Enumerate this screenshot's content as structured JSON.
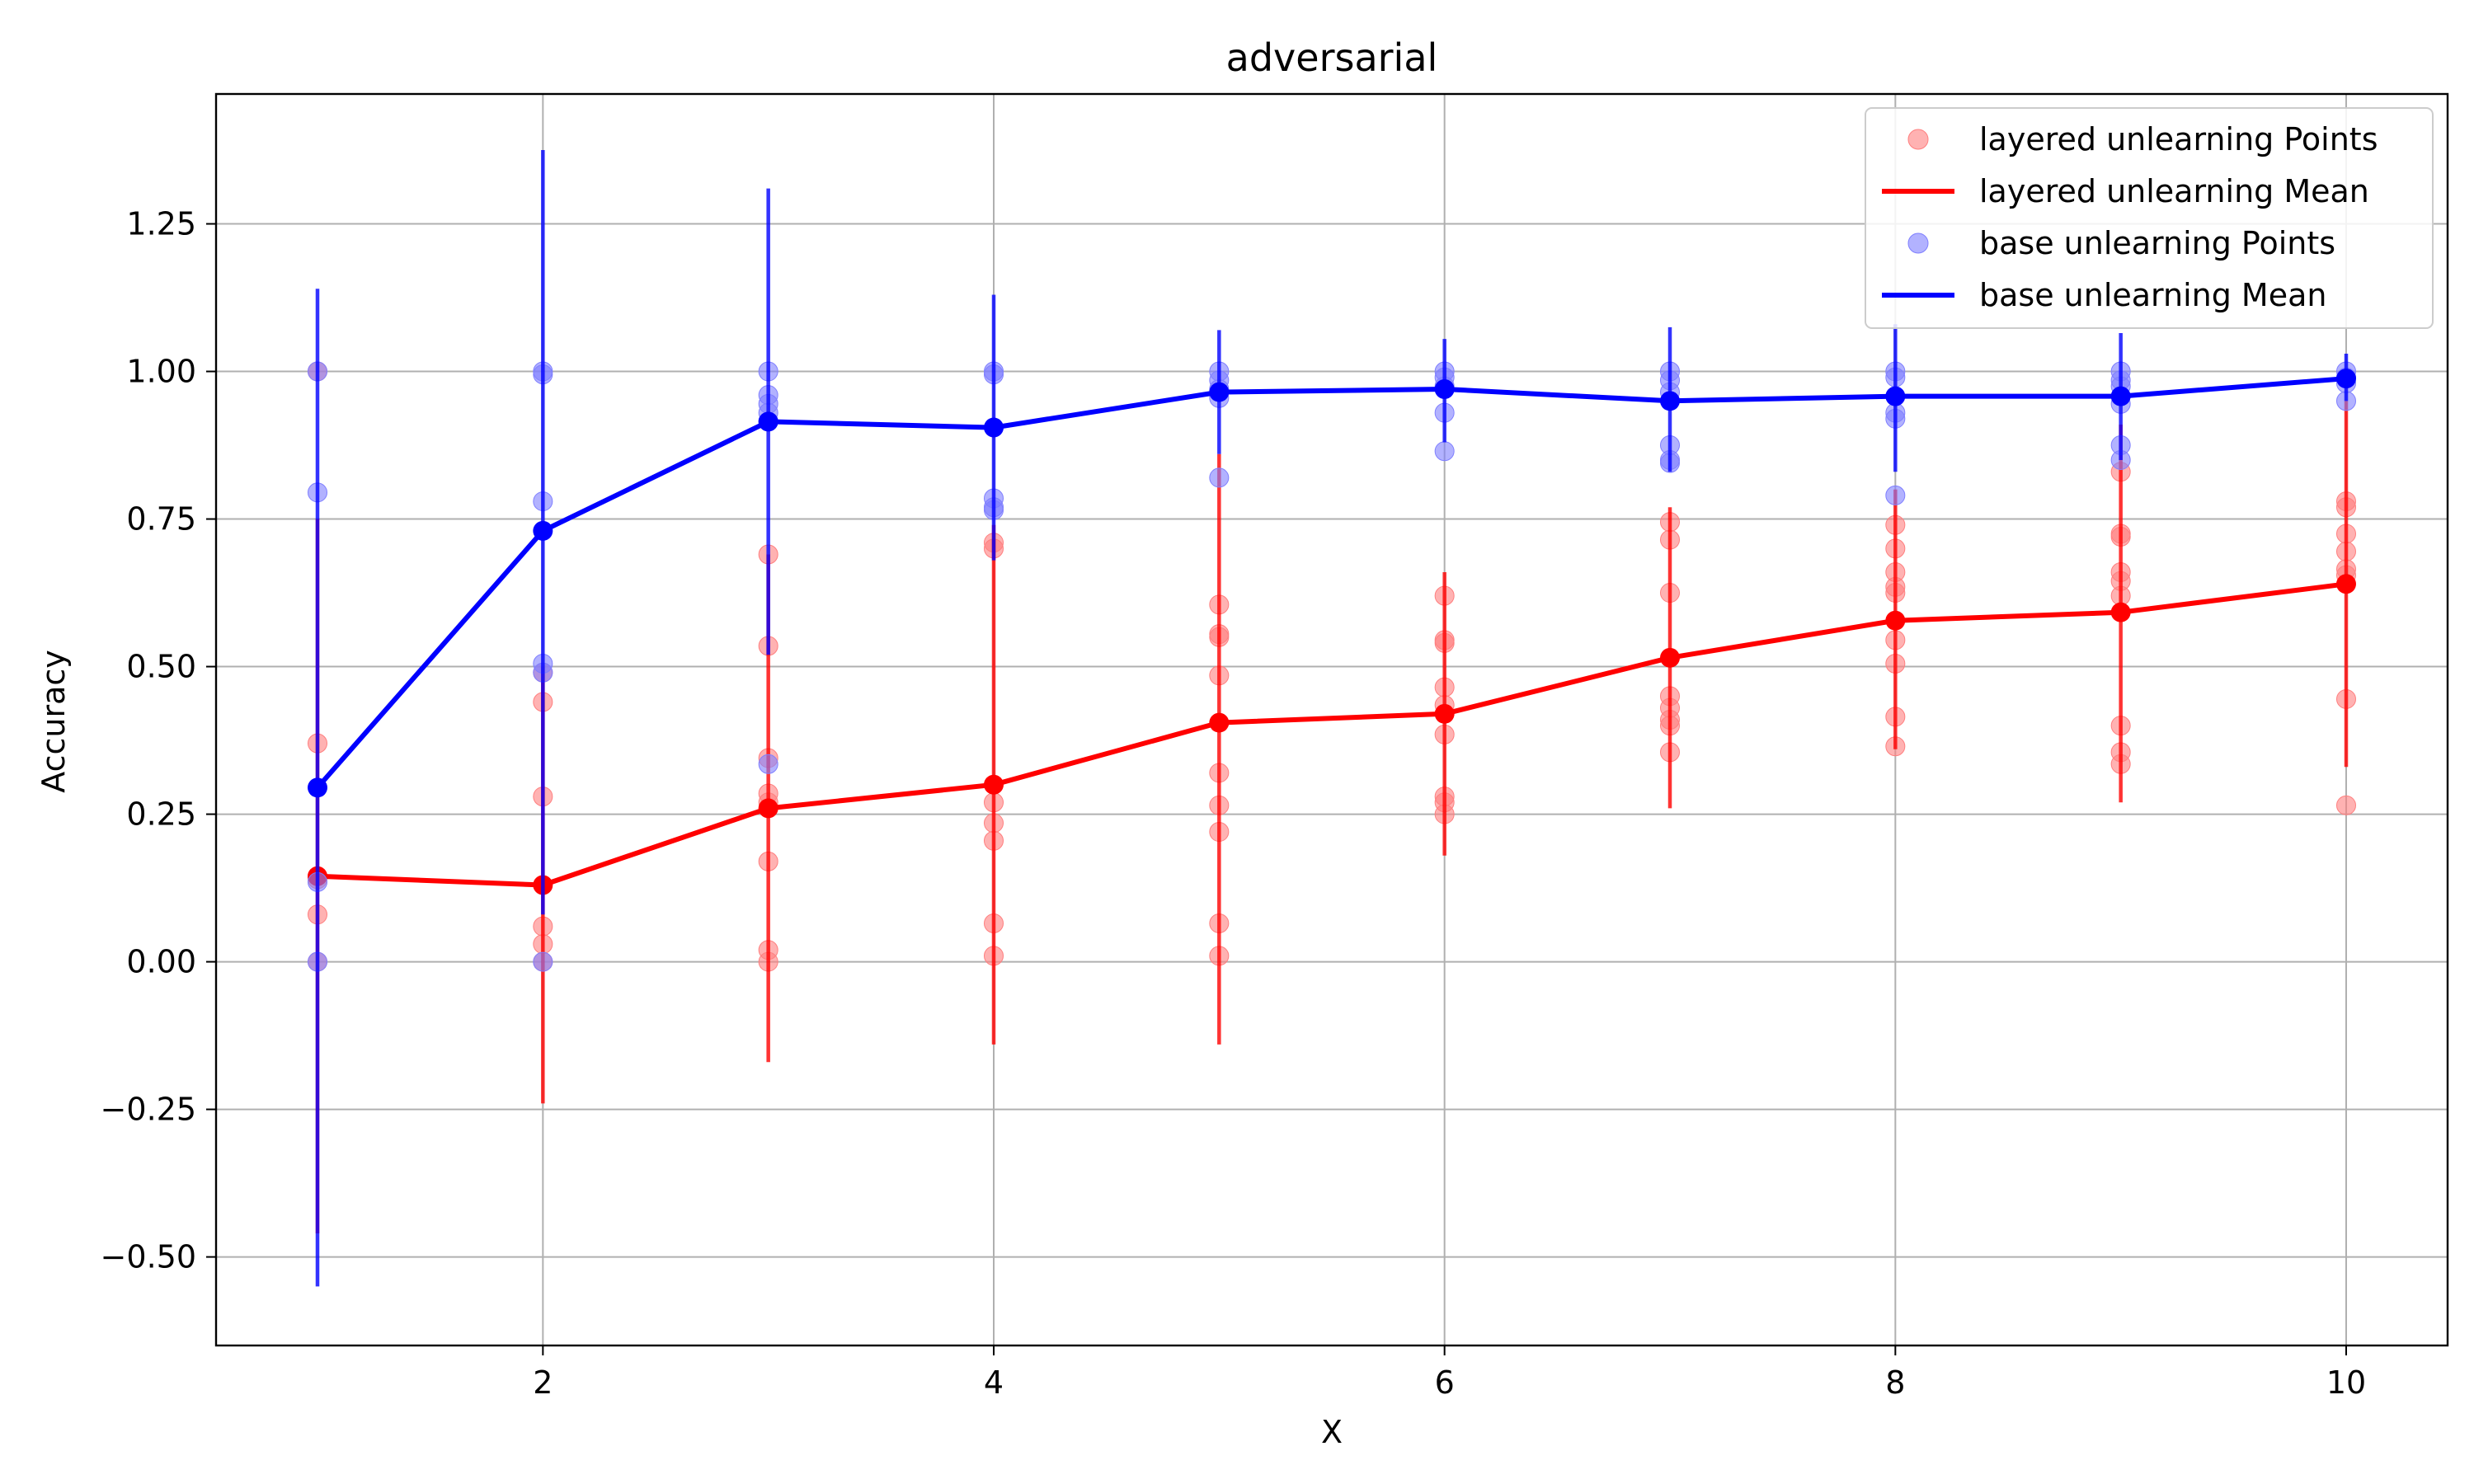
{
  "chart_data": {
    "type": "line",
    "title": "adversarial",
    "xlabel": "X",
    "ylabel": "Accuracy",
    "xlim": [
      0.55,
      10.45
    ],
    "ylim": [
      -0.65,
      1.47
    ],
    "xticks": [
      2,
      4,
      6,
      8,
      10
    ],
    "xtick_labels": [
      "2",
      "4",
      "6",
      "8",
      "10"
    ],
    "yticks": [
      -0.5,
      -0.25,
      0.0,
      0.25,
      0.5,
      0.75,
      1.0,
      1.25
    ],
    "ytick_labels": [
      "−0.50",
      "−0.25",
      "0.00",
      "0.25",
      "0.50",
      "0.75",
      "1.00",
      "1.25"
    ],
    "grid": true,
    "legend_position": "top-right",
    "series": [
      {
        "name": "layered unlearning",
        "points_label": "layered unlearning Points",
        "mean_label": "layered unlearning Mean",
        "color": "#ff0000",
        "points_color": "#ff7f7f",
        "x": [
          1,
          2,
          3,
          4,
          5,
          6,
          7,
          8,
          9,
          10
        ],
        "mean": [
          0.145,
          0.13,
          0.26,
          0.3,
          0.405,
          0.42,
          0.515,
          0.578,
          0.592,
          0.64
        ],
        "err_low": [
          -0.46,
          -0.24,
          -0.17,
          -0.14,
          -0.14,
          0.18,
          0.26,
          0.36,
          0.27,
          0.33
        ],
        "err_high": [
          0.75,
          0.5,
          0.69,
          0.74,
          0.86,
          0.66,
          0.77,
          0.8,
          0.91,
          0.95
        ],
        "points": [
          [
            1,
            0.37
          ],
          [
            1,
            0.08
          ],
          [
            1,
            1.0
          ],
          [
            1,
            0.14
          ],
          [
            1,
            0.0
          ],
          [
            2,
            0.44
          ],
          [
            2,
            0.28
          ],
          [
            2,
            0.06
          ],
          [
            2,
            0.03
          ],
          [
            2,
            0.0
          ],
          [
            2,
            0.49
          ],
          [
            3,
            0.69
          ],
          [
            3,
            0.535
          ],
          [
            3,
            0.345
          ],
          [
            3,
            0.285
          ],
          [
            3,
            0.27
          ],
          [
            3,
            0.17
          ],
          [
            3,
            0.02
          ],
          [
            3,
            0.0
          ],
          [
            4,
            0.71
          ],
          [
            4,
            0.7
          ],
          [
            4,
            0.27
          ],
          [
            4,
            0.235
          ],
          [
            4,
            0.205
          ],
          [
            4,
            0.065
          ],
          [
            4,
            0.01
          ],
          [
            5,
            0.605
          ],
          [
            5,
            0.555
          ],
          [
            5,
            0.55
          ],
          [
            5,
            0.485
          ],
          [
            5,
            0.32
          ],
          [
            5,
            0.265
          ],
          [
            5,
            0.22
          ],
          [
            5,
            0.065
          ],
          [
            5,
            0.01
          ],
          [
            6,
            0.62
          ],
          [
            6,
            0.545
          ],
          [
            6,
            0.54
          ],
          [
            6,
            0.465
          ],
          [
            6,
            0.435
          ],
          [
            6,
            0.385
          ],
          [
            6,
            0.28
          ],
          [
            6,
            0.27
          ],
          [
            6,
            0.25
          ],
          [
            7,
            0.745
          ],
          [
            7,
            0.715
          ],
          [
            7,
            0.625
          ],
          [
            7,
            0.45
          ],
          [
            7,
            0.43
          ],
          [
            7,
            0.41
          ],
          [
            7,
            0.4
          ],
          [
            7,
            0.355
          ],
          [
            8,
            0.74
          ],
          [
            8,
            0.7
          ],
          [
            8,
            0.66
          ],
          [
            8,
            0.635
          ],
          [
            8,
            0.625
          ],
          [
            8,
            0.545
          ],
          [
            8,
            0.505
          ],
          [
            8,
            0.415
          ],
          [
            8,
            0.365
          ],
          [
            9,
            0.83
          ],
          [
            9,
            0.725
          ],
          [
            9,
            0.72
          ],
          [
            9,
            0.66
          ],
          [
            9,
            0.645
          ],
          [
            9,
            0.62
          ],
          [
            9,
            0.4
          ],
          [
            9,
            0.355
          ],
          [
            9,
            0.335
          ],
          [
            10,
            0.78
          ],
          [
            10,
            0.77
          ],
          [
            10,
            0.725
          ],
          [
            10,
            0.695
          ],
          [
            10,
            0.665
          ],
          [
            10,
            0.655
          ],
          [
            10,
            0.445
          ],
          [
            10,
            0.265
          ]
        ]
      },
      {
        "name": "base unlearning",
        "points_label": "base unlearning Points",
        "mean_label": "base unlearning Mean",
        "color": "#0000ff",
        "points_color": "#7f7fff",
        "x": [
          1,
          2,
          3,
          4,
          5,
          6,
          7,
          8,
          9,
          10
        ],
        "mean": [
          0.295,
          0.73,
          0.915,
          0.905,
          0.965,
          0.97,
          0.95,
          0.958,
          0.958,
          0.988
        ],
        "err_low": [
          -0.55,
          0.08,
          0.52,
          0.68,
          0.86,
          0.88,
          0.83,
          0.83,
          0.85,
          0.95
        ],
        "err_high": [
          1.14,
          1.375,
          1.31,
          1.13,
          1.07,
          1.055,
          1.075,
          1.08,
          1.065,
          1.03
        ],
        "points": [
          [
            1,
            1.0
          ],
          [
            1,
            0.795
          ],
          [
            1,
            0.135
          ],
          [
            1,
            0.0
          ],
          [
            2,
            1.0
          ],
          [
            2,
            0.995
          ],
          [
            2,
            0.78
          ],
          [
            2,
            0.505
          ],
          [
            2,
            0.49
          ],
          [
            2,
            0.0
          ],
          [
            3,
            1.0
          ],
          [
            3,
            0.96
          ],
          [
            3,
            0.945
          ],
          [
            3,
            0.93
          ],
          [
            3,
            0.915
          ],
          [
            3,
            0.335
          ],
          [
            4,
            1.0
          ],
          [
            4,
            0.995
          ],
          [
            4,
            0.785
          ],
          [
            4,
            0.77
          ],
          [
            4,
            0.765
          ],
          [
            5,
            1.0
          ],
          [
            5,
            0.985
          ],
          [
            5,
            0.97
          ],
          [
            5,
            0.955
          ],
          [
            5,
            0.82
          ],
          [
            6,
            1.0
          ],
          [
            6,
            0.99
          ],
          [
            6,
            0.975
          ],
          [
            6,
            0.93
          ],
          [
            6,
            0.865
          ],
          [
            7,
            1.0
          ],
          [
            7,
            0.985
          ],
          [
            7,
            0.965
          ],
          [
            7,
            0.875
          ],
          [
            7,
            0.85
          ],
          [
            7,
            0.845
          ],
          [
            8,
            1.0
          ],
          [
            8,
            0.99
          ],
          [
            8,
            0.93
          ],
          [
            8,
            0.92
          ],
          [
            8,
            0.79
          ],
          [
            9,
            1.0
          ],
          [
            9,
            0.985
          ],
          [
            9,
            0.975
          ],
          [
            9,
            0.945
          ],
          [
            9,
            0.875
          ],
          [
            9,
            0.85
          ],
          [
            10,
            1.0
          ],
          [
            10,
            0.99
          ],
          [
            10,
            0.98
          ],
          [
            10,
            0.95
          ]
        ]
      }
    ]
  }
}
